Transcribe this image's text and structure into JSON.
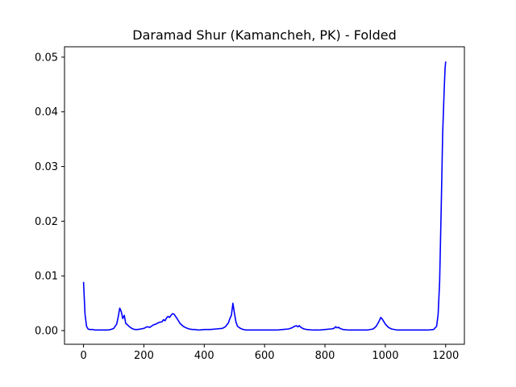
{
  "chart_data": {
    "type": "line",
    "title": "Daramad Shur (Kamancheh, PK) - Folded",
    "xlabel": "",
    "ylabel": "",
    "xlim": [
      -63,
      1262
    ],
    "ylim": [
      -0.0025,
      0.0519
    ],
    "xticks": [
      0,
      200,
      400,
      600,
      800,
      1000,
      1200
    ],
    "xtick_labels": [
      "0",
      "200",
      "400",
      "600",
      "800",
      "1000",
      "1200"
    ],
    "yticks": [
      0.0,
      0.01,
      0.02,
      0.03,
      0.04,
      0.05
    ],
    "ytick_labels": [
      "0.00",
      "0.01",
      "0.02",
      "0.03",
      "0.04",
      "0.05"
    ],
    "grid": false,
    "legend": "none",
    "series": [
      {
        "color": "#0000ff",
        "x": [
          0,
          5,
          10,
          15,
          20,
          30,
          40,
          60,
          80,
          90,
          100,
          110,
          115,
          120,
          125,
          130,
          135,
          140,
          145,
          150,
          160,
          170,
          180,
          190,
          200,
          210,
          220,
          230,
          240,
          250,
          260,
          265,
          270,
          275,
          280,
          285,
          290,
          295,
          300,
          305,
          310,
          320,
          330,
          340,
          350,
          360,
          370,
          380,
          400,
          420,
          440,
          460,
          470,
          480,
          485,
          490,
          495,
          500,
          505,
          510,
          520,
          530,
          540,
          560,
          580,
          600,
          620,
          640,
          660,
          680,
          690,
          700,
          705,
          710,
          715,
          720,
          730,
          740,
          760,
          780,
          800,
          820,
          830,
          835,
          840,
          845,
          850,
          860,
          880,
          900,
          920,
          940,
          960,
          970,
          980,
          985,
          990,
          1000,
          1010,
          1020,
          1040,
          1060,
          1080,
          1100,
          1120,
          1140,
          1160,
          1170,
          1175,
          1180,
          1185,
          1190,
          1195,
          1198,
          1200
        ],
        "y": [
          0.0089,
          0.003,
          0.0008,
          0.0003,
          0.0002,
          0.0002,
          0.0001,
          0.0001,
          0.0001,
          0.0002,
          0.0004,
          0.0012,
          0.0025,
          0.0041,
          0.0035,
          0.0022,
          0.0028,
          0.0013,
          0.0011,
          0.0008,
          0.0004,
          0.0002,
          0.0002,
          0.0003,
          0.0004,
          0.0007,
          0.0006,
          0.001,
          0.0012,
          0.0015,
          0.0016,
          0.002,
          0.0018,
          0.0023,
          0.0026,
          0.0024,
          0.0028,
          0.0031,
          0.003,
          0.0026,
          0.0022,
          0.0013,
          0.0008,
          0.0005,
          0.0003,
          0.0002,
          0.0002,
          0.0001,
          0.0002,
          0.0002,
          0.0003,
          0.0004,
          0.0007,
          0.0014,
          0.0022,
          0.0028,
          0.005,
          0.0032,
          0.0016,
          0.0008,
          0.0004,
          0.0002,
          0.0001,
          0.0001,
          0.0001,
          0.0001,
          0.0001,
          0.0001,
          0.0002,
          0.0003,
          0.0005,
          0.0008,
          0.0009,
          0.0007,
          0.0009,
          0.0006,
          0.0003,
          0.0002,
          0.0001,
          0.0001,
          0.0002,
          0.0003,
          0.0004,
          0.0007,
          0.0005,
          0.0006,
          0.0004,
          0.0002,
          0.0001,
          0.0001,
          0.0001,
          0.0001,
          0.0003,
          0.0008,
          0.0018,
          0.0024,
          0.0021,
          0.0012,
          0.0006,
          0.0003,
          0.0001,
          0.0001,
          0.0001,
          0.0001,
          0.0001,
          0.0001,
          0.0002,
          0.0008,
          0.003,
          0.009,
          0.022,
          0.036,
          0.044,
          0.048,
          0.0492
        ]
      }
    ]
  }
}
